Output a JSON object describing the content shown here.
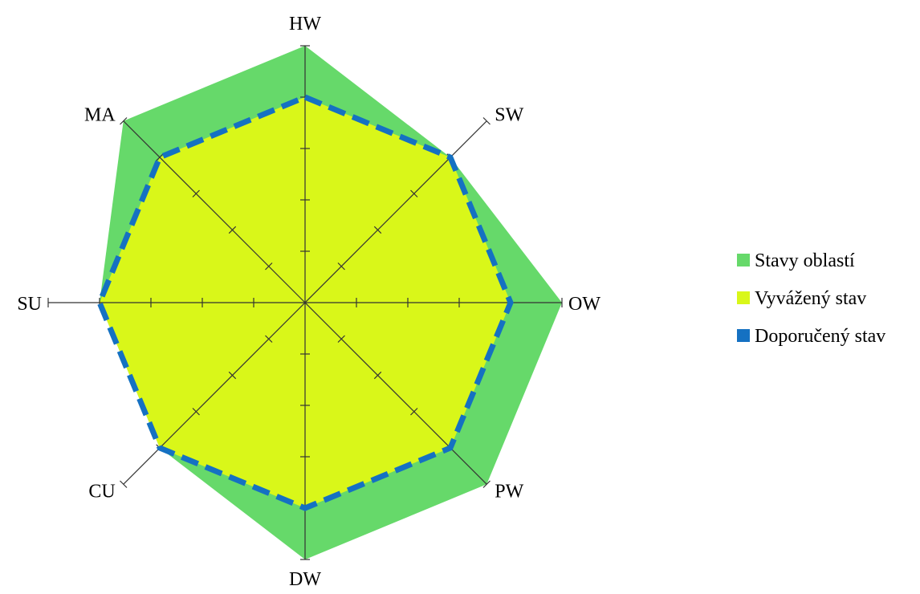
{
  "chart_data": {
    "type": "radar",
    "title": "",
    "categories": [
      "HW",
      "SW",
      "OW",
      "PW",
      "DW",
      "CU",
      "SU",
      "MA"
    ],
    "rmax": 5,
    "ticks": [
      1,
      2,
      3,
      4,
      5
    ],
    "grid": false,
    "legend_position": "right",
    "series": [
      {
        "name": "Stavy oblastí",
        "values": [
          5,
          4,
          5,
          5,
          5,
          4,
          4,
          5
        ],
        "color": "#66d96a",
        "style": "fill"
      },
      {
        "name": "Vyvážený stav",
        "values": [
          4,
          4,
          4,
          4,
          4,
          4,
          4,
          4
        ],
        "color": "#d9f719",
        "style": "fill"
      },
      {
        "name": "Doporučený stav",
        "values": [
          4,
          4,
          4,
          4,
          4,
          4,
          4,
          4
        ],
        "color": "#1571c2",
        "style": "dashed-line"
      }
    ]
  }
}
